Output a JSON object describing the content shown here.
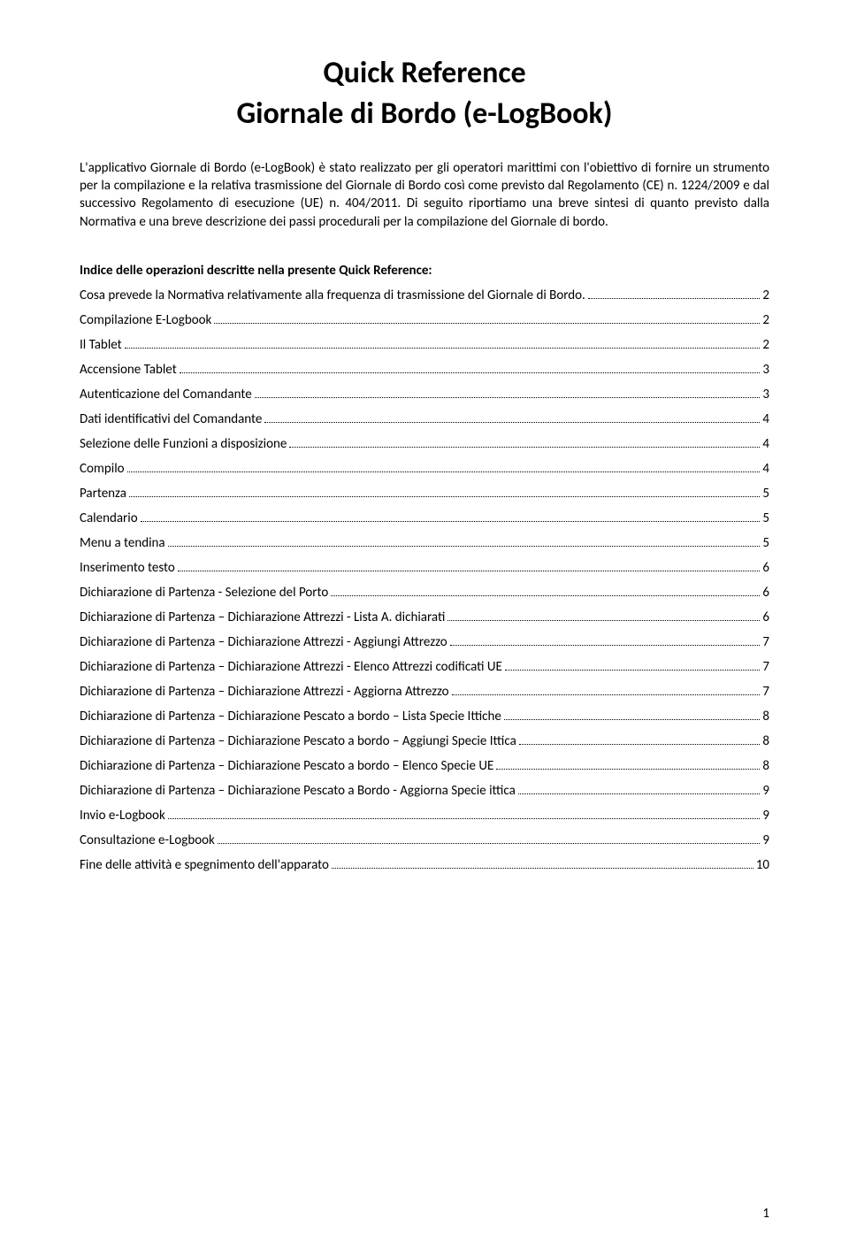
{
  "colors": {
    "background": "#ffffff",
    "text": "#000000",
    "dots": "#000000"
  },
  "typography": {
    "title_fontsize": 34,
    "body_fontsize": 15,
    "font_family": "Calibri"
  },
  "title": {
    "line1": "Quick Reference",
    "line2": "Giornale di Bordo (e-LogBook)"
  },
  "intro": "L'applicativo Giornale di Bordo (e-LogBook) è stato realizzato per gli operatori marittimi con l'obiettivo di fornire un strumento per la compilazione e la relativa trasmissione del Giornale di Bordo così come previsto dal Regolamento (CE) n. 1224/2009 e dal successivo Regolamento di esecuzione (UE) n. 404/2011. Di seguito riportiamo una breve sintesi di quanto previsto dalla Normativa e una breve descrizione dei passi procedurali per la compilazione del Giornale di bordo.",
  "toc_heading": "Indice delle operazioni descritte nella presente Quick Reference:",
  "toc": [
    {
      "label": "Cosa prevede la Normativa relativamente alla frequenza di trasmissione del Giornale di Bordo.",
      "page": "2"
    },
    {
      "label": "Compilazione E-Logbook",
      "page": "2"
    },
    {
      "label": "Il Tablet",
      "page": "2"
    },
    {
      "label": "Accensione Tablet",
      "page": "3"
    },
    {
      "label": "Autenticazione del Comandante",
      "page": "3"
    },
    {
      "label": "Dati identificativi del Comandante",
      "page": "4"
    },
    {
      "label": "Selezione delle Funzioni a disposizione",
      "page": "4"
    },
    {
      "label": "Compilo",
      "page": "4"
    },
    {
      "label": "Partenza",
      "page": "5"
    },
    {
      "label": "Calendario",
      "page": "5"
    },
    {
      "label": "Menu a tendina",
      "page": "5"
    },
    {
      "label": "Inserimento testo",
      "page": "6"
    },
    {
      "label": "Dichiarazione di Partenza - Selezione del Porto",
      "page": "6"
    },
    {
      "label": "Dichiarazione di Partenza – Dichiarazione Attrezzi - Lista A. dichiarati",
      "page": "6"
    },
    {
      "label": "Dichiarazione di Partenza – Dichiarazione Attrezzi - Aggiungi Attrezzo",
      "page": "7"
    },
    {
      "label": "Dichiarazione di Partenza – Dichiarazione Attrezzi - Elenco Attrezzi codificati UE",
      "page": "7"
    },
    {
      "label": "Dichiarazione di Partenza – Dichiarazione Attrezzi - Aggiorna Attrezzo",
      "page": "7"
    },
    {
      "label": "Dichiarazione di Partenza – Dichiarazione Pescato a bordo – Lista Specie Ittiche",
      "page": "8"
    },
    {
      "label": "Dichiarazione di Partenza – Dichiarazione Pescato a bordo – Aggiungi Specie Ittica",
      "page": "8"
    },
    {
      "label": "Dichiarazione di Partenza – Dichiarazione Pescato a bordo – Elenco Specie UE",
      "page": "8"
    },
    {
      "label": "Dichiarazione di Partenza – Dichiarazione Pescato a Bordo - Aggiorna Specie ittica",
      "page": "9"
    },
    {
      "label": "Invio e-Logbook",
      "page": "9"
    },
    {
      "label": "Consultazione e-Logbook",
      "page": "9"
    },
    {
      "label": "Fine delle attività e spegnimento dell'apparato",
      "page": "10"
    }
  ],
  "page_number": "1"
}
